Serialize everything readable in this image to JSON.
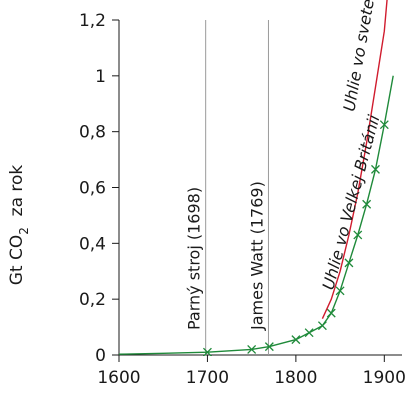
{
  "chart_data": {
    "type": "line",
    "ylabel": {
      "prefix": "Gt CO",
      "subscript": "2",
      "suffix": "  za rok"
    },
    "xlim": [
      1600,
      1920
    ],
    "ylim": [
      0,
      1.2
    ],
    "x_ticks": [
      1600,
      1700,
      1800,
      1900
    ],
    "x_tick_labels": [
      "1600",
      "1700",
      "1800",
      "1900"
    ],
    "y_ticks": [
      0,
      0.2,
      0.4,
      0.6,
      0.8,
      1.0,
      1.2
    ],
    "y_tick_labels": [
      "0",
      "0,2",
      "0,4",
      "0,6",
      "0,8",
      "1",
      "1,2"
    ],
    "grid": false,
    "vertical_markers": [
      {
        "x": 1698,
        "label": "Parný stroj (1698)"
      },
      {
        "x": 1769,
        "label": "James Watt (1769)"
      }
    ],
    "series": [
      {
        "name": "Uhlie vo Velkej Británii",
        "color": "#1f8a3a",
        "marker": "x",
        "x": [
          1600,
          1650,
          1700,
          1750,
          1770,
          1800,
          1815,
          1830,
          1840,
          1850,
          1860,
          1870,
          1880,
          1890,
          1900,
          1910
        ],
        "y": [
          0.003,
          0.006,
          0.01,
          0.02,
          0.03,
          0.055,
          0.08,
          0.105,
          0.15,
          0.23,
          0.33,
          0.43,
          0.54,
          0.665,
          0.825,
          1.0
        ],
        "markers_x": [
          1700,
          1750,
          1770,
          1800,
          1815,
          1830,
          1840,
          1850,
          1860,
          1870,
          1880,
          1890,
          1900
        ]
      },
      {
        "name": "Uhlie vo svete",
        "color": "#d01c2e",
        "marker": "none",
        "x": [
          1830,
          1840,
          1850,
          1860,
          1870,
          1880,
          1890,
          1900,
          1908
        ],
        "y": [
          0.13,
          0.2,
          0.3,
          0.43,
          0.58,
          0.76,
          0.96,
          1.16,
          1.45
        ]
      }
    ]
  }
}
